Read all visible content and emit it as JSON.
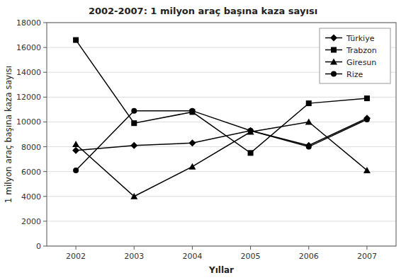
{
  "chart_data": {
    "type": "line",
    "title": "2002-2007: 1 milyon araç başına kaza sayısı",
    "x_label": "Yıllar",
    "y_label": "1 milyon araç başına kaza sayısı",
    "x": [
      2002,
      2003,
      2004,
      2005,
      2006,
      2007
    ],
    "series": [
      {
        "name": "Türkiye",
        "values": [
          7700,
          8100,
          8300,
          9300,
          8100,
          10300
        ],
        "marker": "diamond",
        "color": "#000000"
      },
      {
        "name": "Trabzon",
        "values": [
          16600,
          9900,
          10800,
          7500,
          11500,
          11900
        ],
        "marker": "square",
        "color": "#000000"
      },
      {
        "name": "Giresun",
        "values": [
          8200,
          4000,
          6400,
          9200,
          10000,
          6100
        ],
        "marker": "triangle",
        "color": "#000000"
      },
      {
        "name": "Rize",
        "values": [
          6100,
          10900,
          10900,
          9300,
          8000,
          10200
        ],
        "marker": "circle",
        "color": "#000000"
      }
    ],
    "xlim": [
      2001.5,
      2007.5
    ],
    "xticks": [
      2002,
      2003,
      2004,
      2005,
      2006,
      2007
    ],
    "ylim": [
      0,
      18000
    ],
    "yticks": [
      0,
      2000,
      4000,
      6000,
      8000,
      10000,
      12000,
      14000,
      16000,
      18000
    ],
    "grid": true,
    "legend": "upper right"
  }
}
